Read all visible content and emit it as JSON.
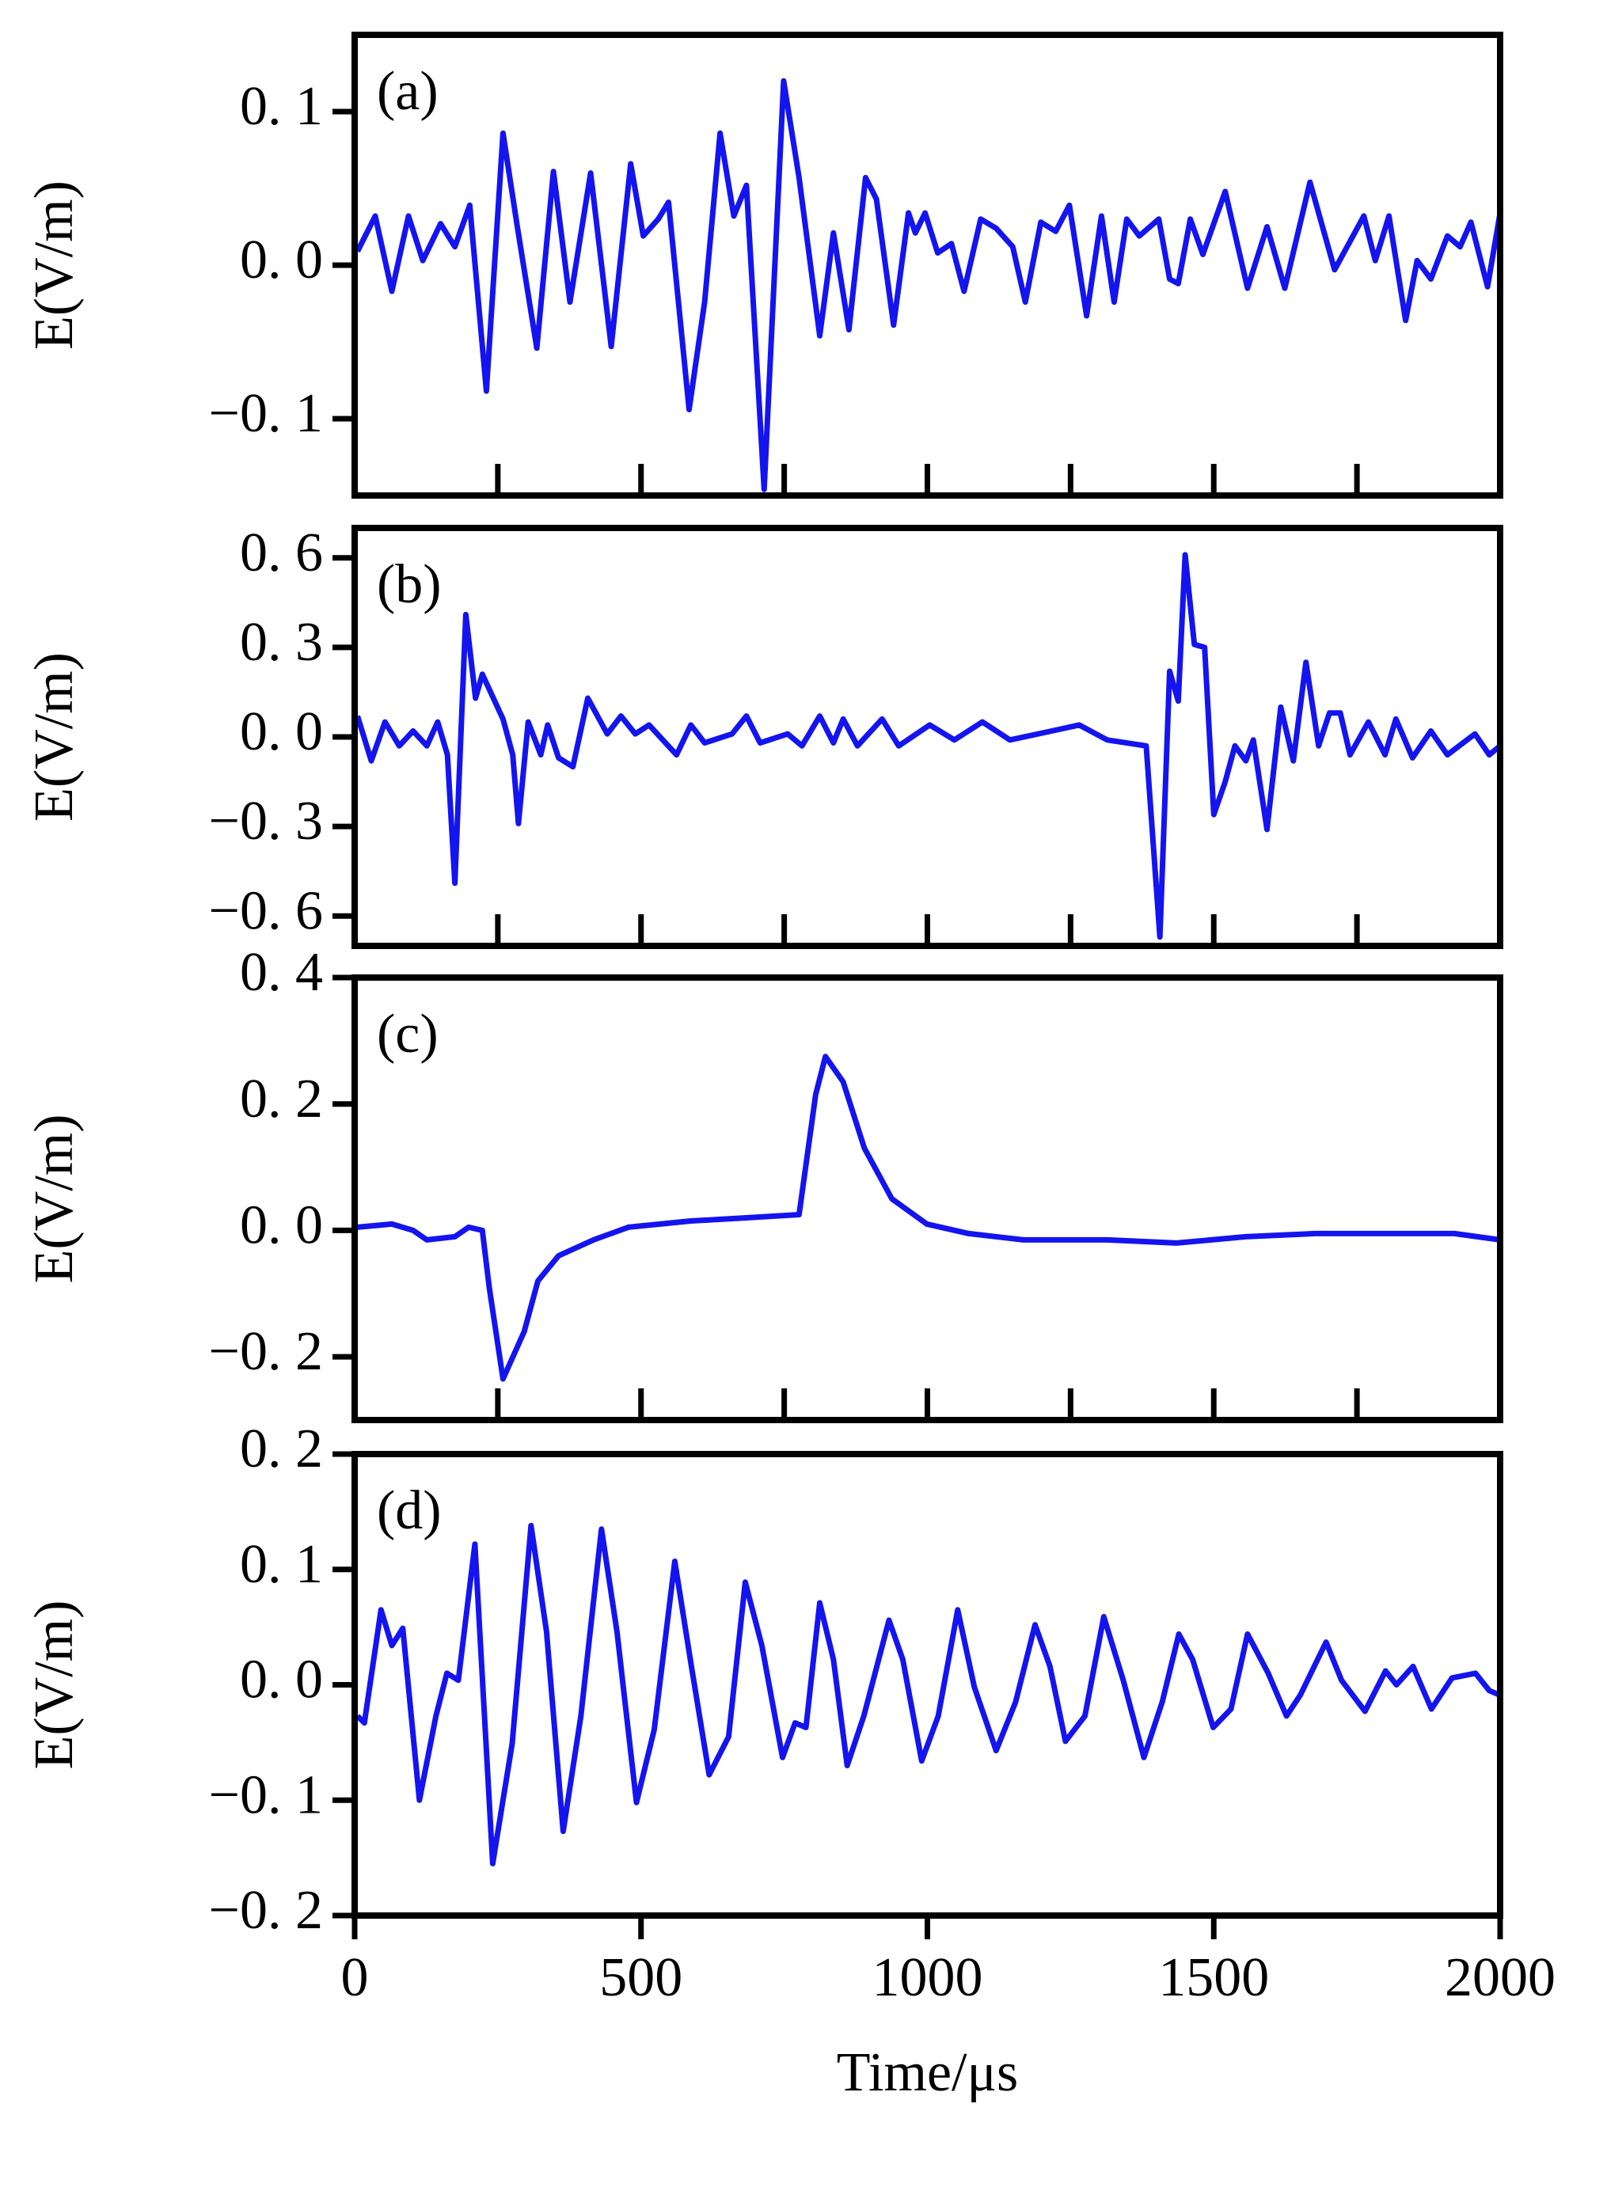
{
  "chart_data": [
    {
      "type": "line",
      "label": "(a)",
      "ylabel": "E(V/m)",
      "color": "#1414f0",
      "xlim": [
        0,
        2000
      ],
      "xticks": [
        0,
        250,
        500,
        750,
        1000,
        1250,
        1500,
        1750,
        2000
      ],
      "ylim": [
        -0.15,
        0.15
      ],
      "yticks": [
        {
          "value": -0.1,
          "label": "−0. 1"
        },
        {
          "value": 0,
          "label": "0. 0"
        },
        {
          "value": 0.1,
          "label": "0. 1"
        }
      ],
      "x": [
        5,
        36,
        65,
        94,
        119,
        150,
        175,
        201,
        230,
        259,
        284,
        318,
        347,
        376,
        412,
        448,
        482,
        504,
        530,
        548,
        584,
        611,
        638,
        662,
        684,
        715,
        749,
        776,
        812,
        836,
        863,
        892,
        911,
        941,
        967,
        979,
        996,
        1018,
        1042,
        1064,
        1093,
        1120,
        1149,
        1171,
        1198,
        1224,
        1248,
        1278,
        1304,
        1326,
        1348,
        1370,
        1404,
        1423,
        1438,
        1459,
        1481,
        1520,
        1559,
        1593,
        1624,
        1668,
        1711,
        1762,
        1782,
        1806,
        1835,
        1855,
        1879,
        1908,
        1930,
        1949,
        1978,
        2000
      ],
      "values": [
        0.009,
        0.032,
        -0.017,
        0.032,
        0.003,
        0.027,
        0.012,
        0.039,
        -0.082,
        0.086,
        0.025,
        -0.054,
        0.061,
        -0.024,
        0.06,
        -0.053,
        0.066,
        0.019,
        0.03,
        0.041,
        -0.094,
        -0.024,
        0.086,
        0.032,
        0.052,
        -0.146,
        0.12,
        0.057,
        -0.046,
        0.021,
        -0.042,
        0.057,
        0.043,
        -0.039,
        0.034,
        0.021,
        0.034,
        0.008,
        0.014,
        -0.017,
        0.03,
        0.024,
        0.012,
        -0.024,
        0.028,
        0.022,
        0.039,
        -0.033,
        0.032,
        -0.024,
        0.03,
        0.019,
        0.03,
        -0.009,
        -0.012,
        0.03,
        0.007,
        0.048,
        -0.015,
        0.025,
        -0.015,
        0.054,
        -0.003,
        0.032,
        0.003,
        0.032,
        -0.036,
        0.003,
        -0.009,
        0.019,
        0.012,
        0.028,
        -0.014,
        0.034
      ]
    },
    {
      "type": "line",
      "label": "(b)",
      "ylabel": "E(V/m)",
      "color": "#1414f0",
      "xlim": [
        0,
        2000
      ],
      "xticks": [
        0,
        250,
        500,
        750,
        1000,
        1250,
        1500,
        1750,
        2000
      ],
      "ylim": [
        -0.7,
        0.7
      ],
      "yticks": [
        {
          "value": -0.6,
          "label": "−0. 6"
        },
        {
          "value": -0.3,
          "label": "−0. 3"
        },
        {
          "value": 0,
          "label": "0. 0"
        },
        {
          "value": 0.3,
          "label": "0. 3"
        },
        {
          "value": 0.6,
          "label": "0. 6"
        }
      ],
      "x": [
        5,
        29,
        53,
        78,
        102,
        126,
        145,
        162,
        175,
        194,
        211,
        223,
        259,
        276,
        286,
        303,
        325,
        337,
        356,
        381,
        407,
        441,
        465,
        490,
        514,
        562,
        587,
        611,
        659,
        684,
        708,
        756,
        781,
        812,
        836,
        853,
        878,
        921,
        950,
        1004,
        1047,
        1096,
        1144,
        1217,
        1265,
        1314,
        1382,
        1406,
        1423,
        1438,
        1450,
        1466,
        1484,
        1500,
        1520,
        1537,
        1556,
        1569,
        1593,
        1617,
        1639,
        1661,
        1683,
        1702,
        1721,
        1738,
        1770,
        1799,
        1818,
        1847,
        1879,
        1908,
        1956,
        1981,
        2000
      ],
      "values": [
        0.07,
        -0.08,
        0.05,
        -0.03,
        0.02,
        -0.03,
        0.05,
        -0.06,
        -0.49,
        0.41,
        0.13,
        0.21,
        0.06,
        -0.06,
        -0.29,
        0.05,
        -0.06,
        0.04,
        -0.07,
        -0.1,
        0.13,
        0.01,
        0.07,
        0.01,
        0.04,
        -0.06,
        0.04,
        -0.02,
        0.01,
        0.07,
        -0.02,
        0.01,
        -0.03,
        0.07,
        -0.02,
        0.06,
        -0.03,
        0.06,
        -0.03,
        0.04,
        -0.01,
        0.05,
        -0.01,
        0.02,
        0.04,
        -0.01,
        -0.03,
        -0.67,
        0.22,
        0.12,
        0.61,
        0.31,
        0.3,
        -0.26,
        -0.15,
        -0.03,
        -0.08,
        -0.01,
        -0.31,
        0.1,
        -0.08,
        0.25,
        -0.03,
        0.08,
        0.08,
        -0.06,
        0.05,
        -0.06,
        0.06,
        -0.07,
        0.02,
        -0.06,
        0.01,
        -0.06,
        -0.03
      ]
    },
    {
      "type": "line",
      "label": "(c)",
      "ylabel": "E(V/m)",
      "color": "#1414f0",
      "xlim": [
        0,
        2000
      ],
      "xticks": [
        0,
        250,
        500,
        750,
        1000,
        1250,
        1500,
        1750,
        2000
      ],
      "ylim": [
        -0.3,
        0.4
      ],
      "yticks": [
        {
          "value": -0.2,
          "label": "−0. 2"
        },
        {
          "value": 0,
          "label": "0. 0"
        },
        {
          "value": 0.2,
          "label": "0. 2"
        },
        {
          "value": 0.4,
          "label": "0. 4"
        }
      ],
      "x": [
        5,
        65,
        102,
        126,
        175,
        199,
        223,
        235,
        259,
        296,
        320,
        356,
        417,
        478,
        587,
        684,
        776,
        805,
        822,
        853,
        890,
        938,
        999,
        1072,
        1168,
        1314,
        1435,
        1556,
        1678,
        1799,
        1920,
        2000
      ],
      "values": [
        0.005,
        0.01,
        0.0,
        -0.015,
        -0.01,
        0.005,
        0.0,
        -0.09,
        -0.235,
        -0.16,
        -0.08,
        -0.04,
        -0.015,
        0.005,
        0.015,
        0.02,
        0.025,
        0.215,
        0.275,
        0.235,
        0.13,
        0.05,
        0.01,
        -0.005,
        -0.015,
        -0.015,
        -0.02,
        -0.01,
        -0.005,
        -0.005,
        -0.005,
        -0.015
      ]
    },
    {
      "type": "line",
      "label": "(d)",
      "ylabel": "E(V/m)",
      "xlabel": "Time/μs",
      "color": "#1414f0",
      "xlim": [
        0,
        2000
      ],
      "xticks": [
        0,
        500,
        1000,
        1500,
        2000
      ],
      "ylim": [
        -0.2,
        0.2
      ],
      "yticks": [
        {
          "value": -0.2,
          "label": "−0. 2"
        },
        {
          "value": -0.1,
          "label": "−0. 1"
        },
        {
          "value": 0,
          "label": "0. 0"
        },
        {
          "value": 0.1,
          "label": "0. 1"
        },
        {
          "value": 0.2,
          "label": "0. 2"
        }
      ],
      "x": [
        5,
        17,
        46,
        65,
        84,
        113,
        142,
        161,
        181,
        210,
        241,
        275,
        308,
        335,
        364,
        395,
        431,
        458,
        492,
        523,
        559,
        588,
        619,
        653,
        682,
        711,
        747,
        769,
        788,
        812,
        836,
        860,
        889,
        933,
        957,
        990,
        1019,
        1053,
        1082,
        1120,
        1154,
        1188,
        1214,
        1241,
        1275,
        1308,
        1342,
        1378,
        1410,
        1439,
        1463,
        1499,
        1530,
        1559,
        1595,
        1627,
        1651,
        1696,
        1723,
        1764,
        1800,
        1819,
        1848,
        1880,
        1916,
        1957,
        1981,
        2000
      ],
      "values": [
        -0.027,
        -0.033,
        0.065,
        0.034,
        0.049,
        -0.1,
        -0.027,
        0.01,
        0.004,
        0.122,
        -0.155,
        -0.051,
        0.138,
        0.046,
        -0.127,
        -0.027,
        0.135,
        0.046,
        -0.102,
        -0.039,
        0.107,
        0.016,
        -0.078,
        -0.045,
        0.089,
        0.034,
        -0.063,
        -0.033,
        -0.037,
        0.071,
        0.022,
        -0.07,
        -0.027,
        0.056,
        0.022,
        -0.066,
        -0.027,
        0.065,
        -0.002,
        -0.057,
        -0.015,
        0.052,
        0.016,
        -0.049,
        -0.027,
        0.059,
        0.004,
        -0.063,
        -0.015,
        0.044,
        0.022,
        -0.037,
        -0.021,
        0.044,
        0.01,
        -0.027,
        -0.009,
        0.037,
        0.004,
        -0.023,
        0.012,
        0.0,
        0.016,
        -0.021,
        0.006,
        0.01,
        -0.005,
        -0.009
      ]
    }
  ]
}
